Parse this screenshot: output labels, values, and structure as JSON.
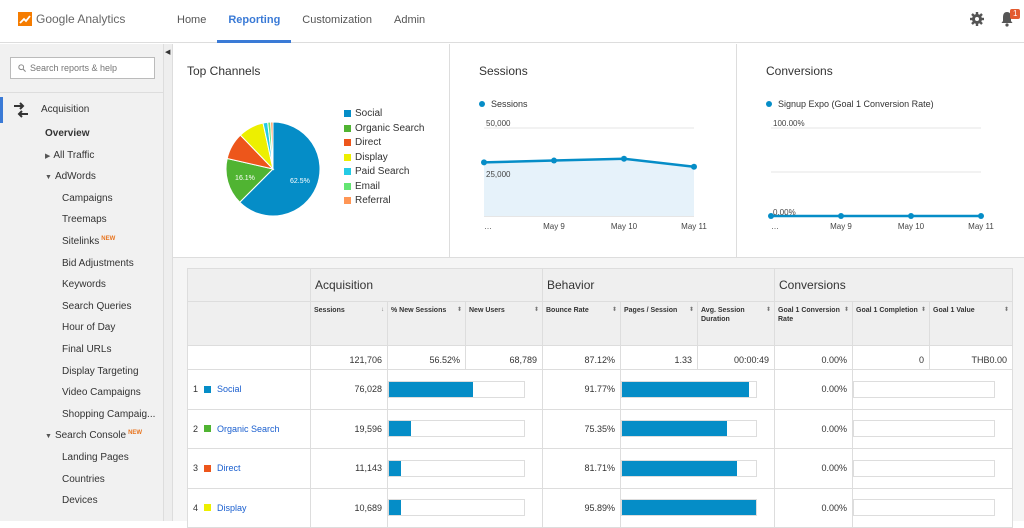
{
  "header": {
    "app_name": "Google Analytics",
    "nav": [
      "Home",
      "Reporting",
      "Customization",
      "Admin"
    ],
    "active_nav": "Reporting",
    "notification_count": "1"
  },
  "sidebar": {
    "search_placeholder": "Search reports & help",
    "section": "Acquisition",
    "items": [
      {
        "label": "Overview",
        "indent": 45,
        "bold": true,
        "arrow": "",
        "new": ""
      },
      {
        "label": "All Traffic",
        "indent": 45,
        "bold": false,
        "arrow": "right",
        "new": ""
      },
      {
        "label": "AdWords",
        "indent": 45,
        "bold": false,
        "arrow": "down",
        "new": ""
      },
      {
        "label": "Campaigns",
        "indent": 62,
        "bold": false,
        "arrow": "",
        "new": ""
      },
      {
        "label": "Treemaps",
        "indent": 62,
        "bold": false,
        "arrow": "",
        "new": ""
      },
      {
        "label": "Sitelinks",
        "indent": 62,
        "bold": false,
        "arrow": "",
        "new": "NEW"
      },
      {
        "label": "Bid Adjustments",
        "indent": 62,
        "bold": false,
        "arrow": "",
        "new": ""
      },
      {
        "label": "Keywords",
        "indent": 62,
        "bold": false,
        "arrow": "",
        "new": ""
      },
      {
        "label": "Search Queries",
        "indent": 62,
        "bold": false,
        "arrow": "",
        "new": ""
      },
      {
        "label": "Hour of Day",
        "indent": 62,
        "bold": false,
        "arrow": "",
        "new": ""
      },
      {
        "label": "Final URLs",
        "indent": 62,
        "bold": false,
        "arrow": "",
        "new": ""
      },
      {
        "label": "Display Targeting",
        "indent": 62,
        "bold": false,
        "arrow": "",
        "new": ""
      },
      {
        "label": "Video Campaigns",
        "indent": 62,
        "bold": false,
        "arrow": "",
        "new": ""
      },
      {
        "label": "Shopping Campaig...",
        "indent": 62,
        "bold": false,
        "arrow": "",
        "new": ""
      },
      {
        "label": "Search Console",
        "indent": 45,
        "bold": false,
        "arrow": "down",
        "new": "NEW"
      },
      {
        "label": "Landing Pages",
        "indent": 62,
        "bold": false,
        "arrow": "",
        "new": ""
      },
      {
        "label": "Countries",
        "indent": 62,
        "bold": false,
        "arrow": "",
        "new": ""
      },
      {
        "label": "Devices",
        "indent": 62,
        "bold": false,
        "arrow": "",
        "new": ""
      }
    ]
  },
  "panels": {
    "top_channels": {
      "title": "Top Channels"
    },
    "sessions": {
      "title": "Sessions",
      "series": "Sessions"
    },
    "conversions": {
      "title": "Conversions",
      "series": "Signup Expo (Goal 1 Conversion Rate)"
    }
  },
  "chart_data": [
    {
      "type": "pie",
      "title": "Top Channels",
      "slices": [
        {
          "label": "Social",
          "value": 62.5,
          "color": "#058dc7",
          "show_pct": "62.5%"
        },
        {
          "label": "Organic Search",
          "value": 16.1,
          "color": "#50b432",
          "show_pct": "16.1%"
        },
        {
          "label": "Direct",
          "value": 9.2,
          "color": "#ed561b",
          "show_pct": ""
        },
        {
          "label": "Display",
          "value": 8.8,
          "color": "#edef00",
          "show_pct": ""
        },
        {
          "label": "Paid Search",
          "value": 1.6,
          "color": "#24cbe5",
          "show_pct": ""
        },
        {
          "label": "Email",
          "value": 1.0,
          "color": "#64e572",
          "show_pct": ""
        },
        {
          "label": "Referral",
          "value": 0.8,
          "color": "#ff9655",
          "show_pct": ""
        }
      ]
    },
    {
      "type": "area",
      "title": "Sessions",
      "x": [
        "…",
        "May 9",
        "May 10",
        "May 11"
      ],
      "series": [
        {
          "name": "Sessions",
          "values": [
            30500,
            31500,
            32500,
            28000
          ]
        }
      ],
      "y_ticks": [
        "50,000",
        "25,000"
      ],
      "ylim": [
        0,
        50000
      ]
    },
    {
      "type": "line",
      "title": "Conversions",
      "x": [
        "…",
        "May 9",
        "May 10",
        "May 11"
      ],
      "series": [
        {
          "name": "Signup Expo (Goal 1 Conversion Rate)",
          "values": [
            0,
            0,
            0,
            0
          ]
        }
      ],
      "y_ticks": [
        "100.00%",
        "0.00%"
      ],
      "ylim": [
        0,
        100
      ]
    }
  ],
  "table": {
    "groups": [
      "Acquisition",
      "Behavior",
      "Conversions"
    ],
    "columns": [
      "Sessions",
      "% New Sessions",
      "New Users",
      "Bounce Rate",
      "Pages / Session",
      "Avg. Session Duration",
      "Goal 1 Conversion Rate",
      "Goal 1 Completion",
      "Goal 1 Value"
    ],
    "totals": [
      "121,706",
      "56.52%",
      "68,789",
      "87.12%",
      "1.33",
      "00:00:49",
      "0.00%",
      "0",
      "THB0.00"
    ],
    "rows": [
      {
        "rank": "1",
        "name": "Social",
        "color": "#058dc7",
        "sessions": "76,028",
        "acq_bar": 0.62,
        "bounce": "91.77%",
        "beh_bar": 0.95,
        "conv": "0.00%"
      },
      {
        "rank": "2",
        "name": "Organic Search",
        "color": "#50b432",
        "sessions": "19,596",
        "acq_bar": 0.16,
        "bounce": "75.35%",
        "beh_bar": 0.78,
        "conv": "0.00%"
      },
      {
        "rank": "3",
        "name": "Direct",
        "color": "#ed561b",
        "sessions": "11,143",
        "acq_bar": 0.09,
        "bounce": "81.71%",
        "beh_bar": 0.86,
        "conv": "0.00%"
      },
      {
        "rank": "4",
        "name": "Display",
        "color": "#edef00",
        "sessions": "10,689",
        "acq_bar": 0.09,
        "bounce": "95.89%",
        "beh_bar": 1.0,
        "conv": "0.00%"
      }
    ]
  }
}
